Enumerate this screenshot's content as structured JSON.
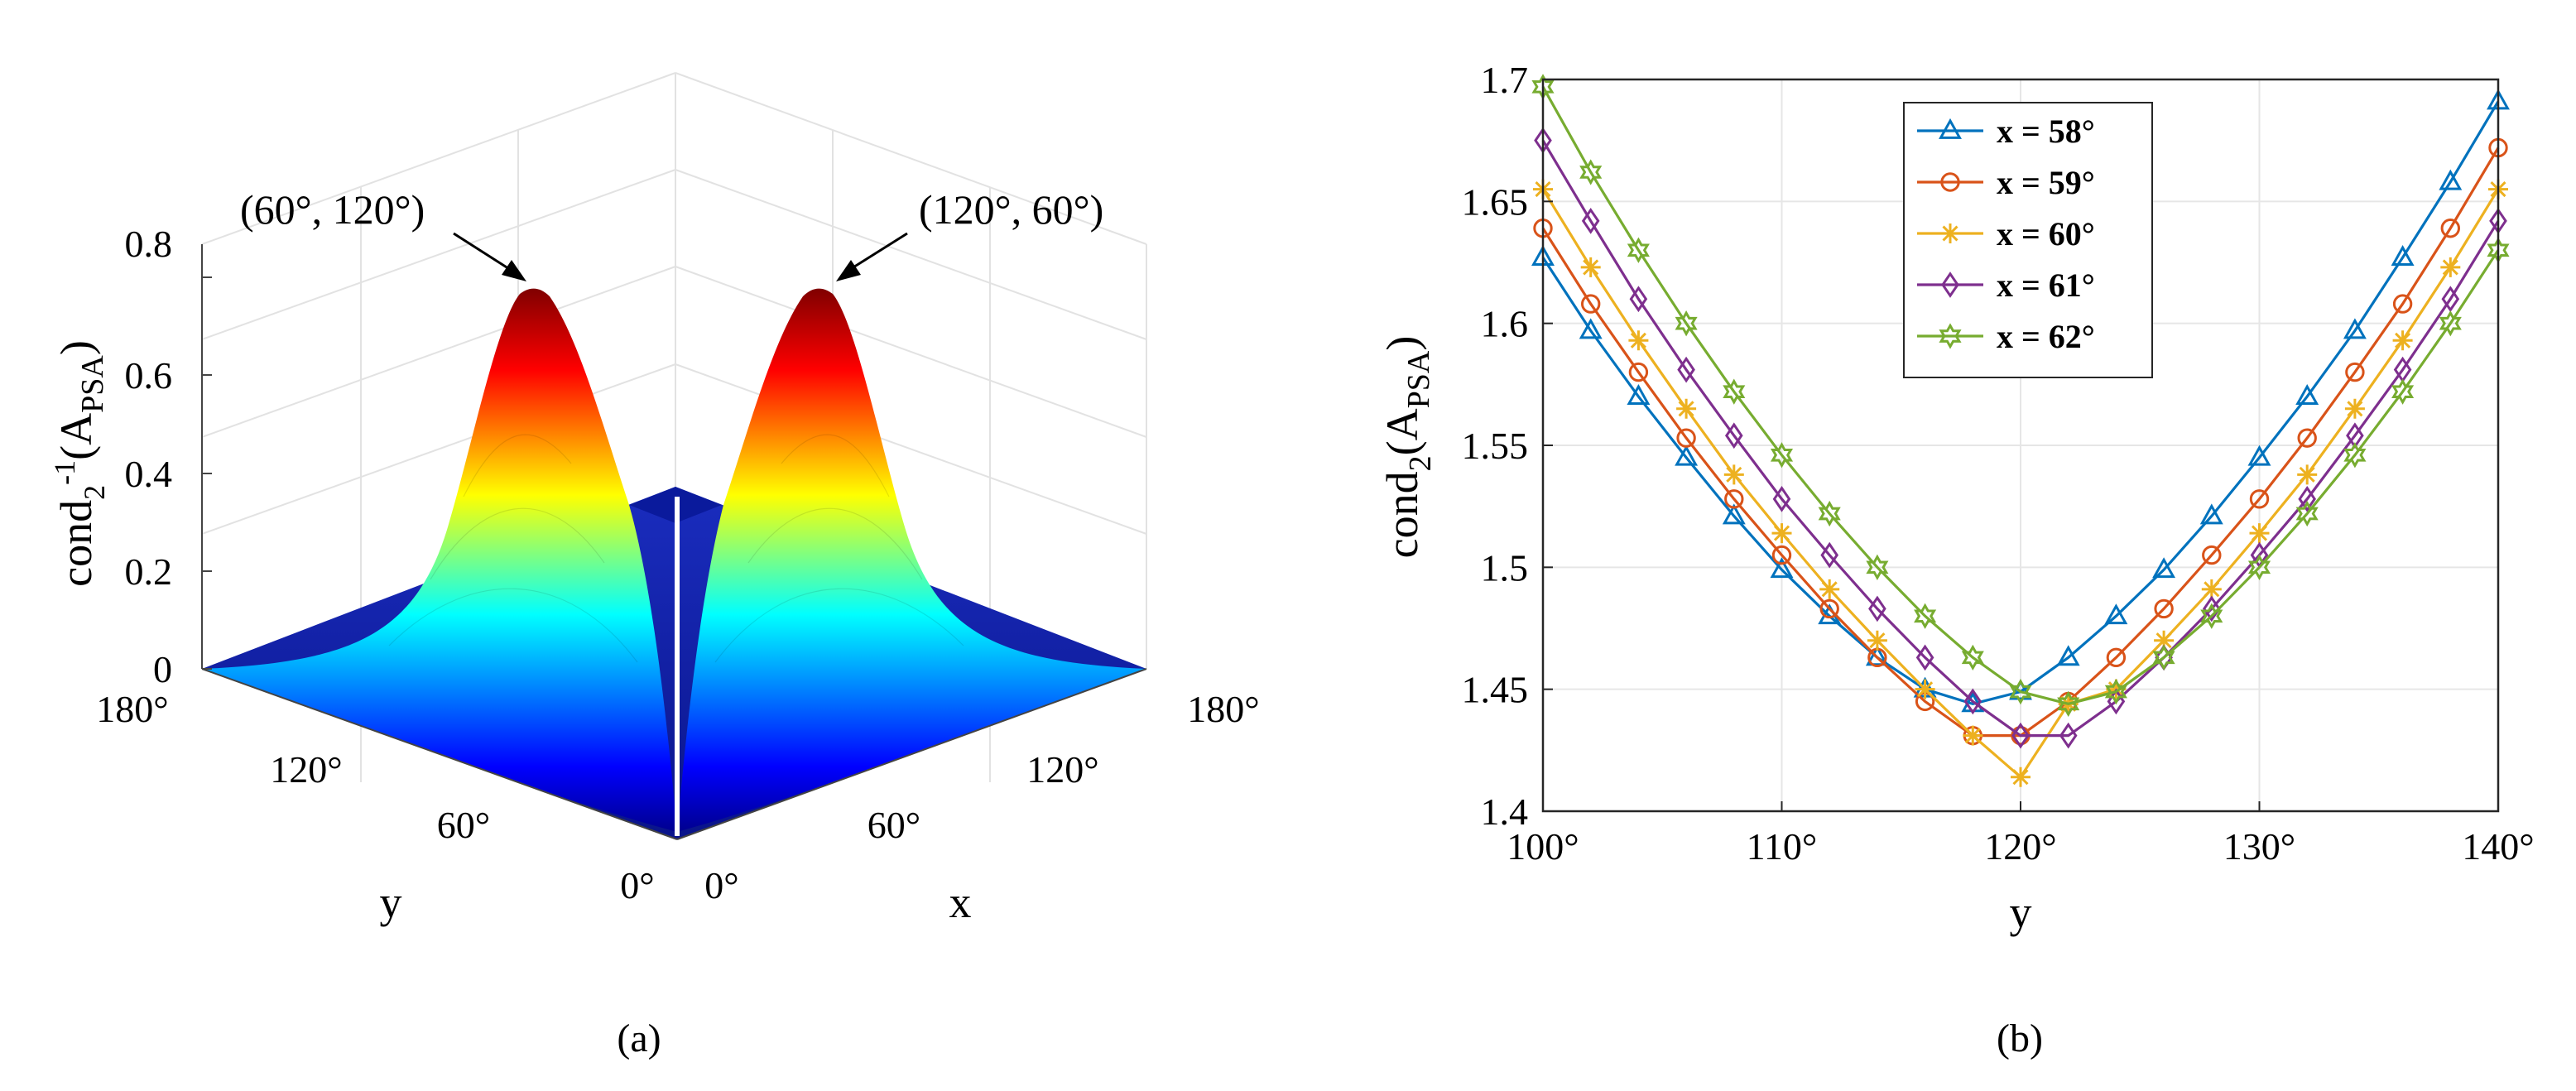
{
  "chart_data": [
    {
      "id": "a",
      "type": "surface",
      "caption": "(a)",
      "zlabel_base": "cond",
      "zlabel_sub": "2",
      "zlabel_sup": "-1",
      "zlabel_arg": "(A",
      "zlabel_arg_sub": "PSA",
      "zlabel_close": ")",
      "xlabel": "x",
      "ylabel": "y",
      "zlim": [
        0,
        0.8
      ],
      "zticks": [
        "0",
        "0.2",
        "0.4",
        "0.6",
        "0.8"
      ],
      "xticks": [
        "0°",
        "60°",
        "120°",
        "180°"
      ],
      "yticks": [
        "0°",
        "60°",
        "120°",
        "180°"
      ],
      "peaks": [
        {
          "label": "(60°, 120°)",
          "x": 60,
          "y": 120,
          "z": 0.7
        },
        {
          "label": "(120°, 60°)",
          "x": 120,
          "y": 60,
          "z": 0.7
        }
      ],
      "colormap": [
        "#00008f",
        "#0000ff",
        "#00ffff",
        "#ffff00",
        "#ff0000",
        "#800000"
      ],
      "grid": true
    },
    {
      "id": "b",
      "type": "line",
      "caption": "(b)",
      "ylabel_base": "cond",
      "ylabel_sub": "2",
      "ylabel_arg": "(A",
      "ylabel_arg_sub": "PSA",
      "ylabel_close": ")",
      "xlabel": "y",
      "xlim": [
        100,
        140
      ],
      "ylim": [
        1.4,
        1.7
      ],
      "xticks": [
        100,
        110,
        120,
        130,
        140
      ],
      "xtick_labels": [
        "100°",
        "110°",
        "120°",
        "130°",
        "140°"
      ],
      "yticks": [
        1.4,
        1.45,
        1.5,
        1.55,
        1.6,
        1.65,
        1.7
      ],
      "ytick_labels": [
        "1.4",
        "1.45",
        "1.5",
        "1.55",
        "1.6",
        "1.65",
        "1.7"
      ],
      "legend_position": "top-center",
      "grid": true,
      "x": [
        100,
        102,
        104,
        106,
        108,
        110,
        112,
        114,
        116,
        118,
        120,
        122,
        124,
        126,
        128,
        130,
        132,
        134,
        136,
        138,
        140
      ],
      "series": [
        {
          "name": "x = 58°",
          "color": "#0072bd",
          "marker": "triangle",
          "values": [
            1.627,
            1.597,
            1.57,
            1.545,
            1.521,
            1.499,
            1.48,
            1.463,
            1.45,
            1.444,
            1.449,
            1.463,
            1.48,
            1.499,
            1.521,
            1.545,
            1.57,
            1.597,
            1.627,
            1.658,
            1.691
          ]
        },
        {
          "name": "x = 59°",
          "color": "#d95319",
          "marker": "circle",
          "values": [
            1.639,
            1.608,
            1.58,
            1.553,
            1.528,
            1.505,
            1.483,
            1.463,
            1.445,
            1.431,
            1.431,
            1.445,
            1.463,
            1.483,
            1.505,
            1.528,
            1.553,
            1.58,
            1.608,
            1.639,
            1.672
          ]
        },
        {
          "name": "x = 60°",
          "color": "#edb120",
          "marker": "star",
          "values": [
            1.655,
            1.623,
            1.593,
            1.565,
            1.538,
            1.514,
            1.491,
            1.47,
            1.45,
            1.431,
            1.414,
            1.444,
            1.45,
            1.47,
            1.491,
            1.514,
            1.538,
            1.565,
            1.593,
            1.623,
            1.655
          ]
        },
        {
          "name": "x = 61°",
          "color": "#7e2f8e",
          "marker": "diamond",
          "values": [
            1.675,
            1.642,
            1.61,
            1.581,
            1.554,
            1.528,
            1.505,
            1.483,
            1.463,
            1.445,
            1.431,
            1.431,
            1.445,
            1.463,
            1.483,
            1.505,
            1.528,
            1.554,
            1.581,
            1.61,
            1.642
          ]
        },
        {
          "name": "x = 62°",
          "color": "#77ac30",
          "marker": "hexagram",
          "values": [
            1.697,
            1.662,
            1.63,
            1.6,
            1.572,
            1.546,
            1.522,
            1.5,
            1.48,
            1.463,
            1.449,
            1.444,
            1.449,
            1.463,
            1.48,
            1.5,
            1.522,
            1.546,
            1.572,
            1.6,
            1.63
          ]
        }
      ]
    }
  ]
}
